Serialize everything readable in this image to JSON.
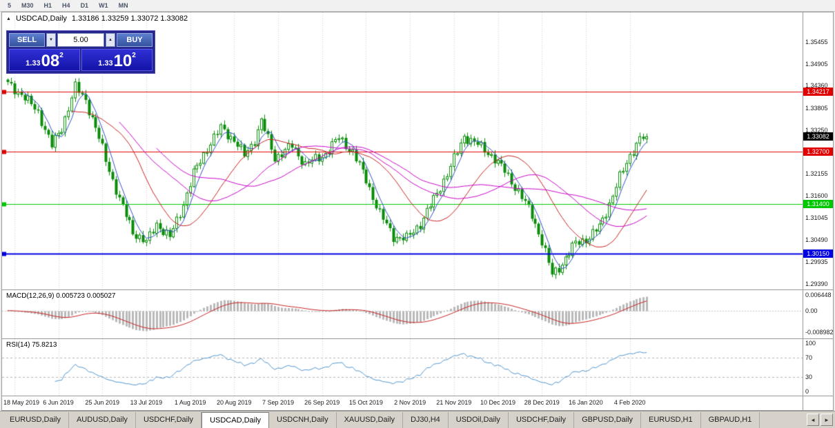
{
  "toolbar": {
    "periods": [
      "5",
      "M30",
      "H1",
      "H4",
      "D1",
      "W1",
      "MN"
    ]
  },
  "chart": {
    "title": "USDCAD,Daily",
    "ohlc": "1.33186 1.33259 1.33072 1.33082",
    "marker_icon": "▲"
  },
  "trade_panel": {
    "sell_label": "SELL",
    "buy_label": "BUY",
    "lot_value": "5.00",
    "decrease_icon": "▼",
    "increase_icon": "▲",
    "sell_price_prefix": "1.33",
    "sell_price_big": "08",
    "sell_price_sup": "2",
    "buy_price_prefix": "1.33",
    "buy_price_big": "10",
    "buy_price_sup": "2"
  },
  "tabs": {
    "items": [
      "EURUSD,Daily",
      "AUDUSD,Daily",
      "USDCHF,Daily",
      "USDCAD,Daily",
      "USDCNH,Daily",
      "XAUUSD,Daily",
      "DJ30,H4",
      "USDOil,Daily",
      "USDCHF,Daily",
      "GBPUSD,Daily",
      "EURUSD,H1",
      "GBPAUD,H1"
    ],
    "active_index": 3,
    "nav_left_icon": "◄",
    "nav_right_icon": "►"
  },
  "chart_data": {
    "type": "candlestick",
    "symbol": "USDCAD",
    "period": "Daily",
    "open": 1.33186,
    "high": 1.33259,
    "low": 1.33072,
    "close": 1.33082,
    "num_candles": 190,
    "price_path_anchors": [
      [
        0,
        1.344
      ],
      [
        4,
        1.3415
      ],
      [
        9,
        1.337
      ],
      [
        13,
        1.3285
      ],
      [
        16,
        1.333
      ],
      [
        20,
        1.3432
      ],
      [
        23,
        1.34
      ],
      [
        26,
        1.333
      ],
      [
        29,
        1.325
      ],
      [
        33,
        1.315
      ],
      [
        37,
        1.307
      ],
      [
        41,
        1.3042
      ],
      [
        44,
        1.309
      ],
      [
        48,
        1.3055
      ],
      [
        52,
        1.314
      ],
      [
        55,
        1.3215
      ],
      [
        59,
        1.328
      ],
      [
        63,
        1.333
      ],
      [
        67,
        1.33
      ],
      [
        70,
        1.326
      ],
      [
        73,
        1.33
      ],
      [
        75,
        1.3348
      ],
      [
        79,
        1.3255
      ],
      [
        84,
        1.3285
      ],
      [
        88,
        1.324
      ],
      [
        93,
        1.3258
      ],
      [
        98,
        1.3305
      ],
      [
        102,
        1.327
      ],
      [
        106,
        1.32
      ],
      [
        110,
        1.3115
      ],
      [
        114,
        1.3058
      ],
      [
        118,
        1.3052
      ],
      [
        122,
        1.309
      ],
      [
        126,
        1.315
      ],
      [
        130,
        1.3215
      ],
      [
        133,
        1.327
      ],
      [
        135,
        1.331
      ],
      [
        139,
        1.3288
      ],
      [
        143,
        1.3262
      ],
      [
        147,
        1.3222
      ],
      [
        151,
        1.317
      ],
      [
        155,
        1.3112
      ],
      [
        158,
        1.3045
      ],
      [
        161,
        1.2962
      ],
      [
        164,
        1.299
      ],
      [
        168,
        1.3042
      ],
      [
        172,
        1.3055
      ],
      [
        175,
        1.3082
      ],
      [
        178,
        1.314
      ],
      [
        181,
        1.3205
      ],
      [
        184,
        1.3262
      ],
      [
        187,
        1.3302
      ],
      [
        189,
        1.3308
      ]
    ],
    "synthesis": {
      "noise": [
        [
          0.0009,
          2.3,
          0.0
        ],
        [
          0.0006,
          0.9,
          2.0
        ]
      ],
      "wick": [
        0.0008,
        1.3,
        0.7,
        2.1
      ]
    },
    "candle_colors": {
      "up": "#0b8c0b",
      "down": "#0b8c0b"
    },
    "moving_averages": [
      {
        "period": 5,
        "color": "#3050c8"
      },
      {
        "period": 20,
        "color": "#c82020"
      },
      {
        "period": 34,
        "color": "#c800c8"
      },
      {
        "period": 45,
        "color": "#c800c8"
      }
    ],
    "y_axis": {
      "min": 1.2925,
      "max": 1.362,
      "ticks": [
        {
          "v": 1.35455,
          "label": "1.35455"
        },
        {
          "v": 1.34905,
          "label": "1.34905"
        },
        {
          "v": 1.3436,
          "label": "1.34360"
        },
        {
          "v": 1.33805,
          "label": "1.33805"
        },
        {
          "v": 1.3325,
          "label": "1.33250"
        },
        {
          "v": 1.327,
          "label": "1.32700"
        },
        {
          "v": 1.32155,
          "label": "1.32155"
        },
        {
          "v": 1.316,
          "label": "1.31600"
        },
        {
          "v": 1.31045,
          "label": "1.31045"
        },
        {
          "v": 1.3049,
          "label": "1.30490"
        },
        {
          "v": 1.29935,
          "label": "1.29935"
        },
        {
          "v": 1.2939,
          "label": "1.29390"
        }
      ]
    },
    "x_ticks": [
      {
        "i": 2,
        "label": "18 May 2019"
      },
      {
        "i": 15,
        "label": "6 Jun 2019"
      },
      {
        "i": 28,
        "label": "25 Jun 2019"
      },
      {
        "i": 41,
        "label": "13 Jul 2019"
      },
      {
        "i": 54,
        "label": "1 Aug 2019"
      },
      {
        "i": 67,
        "label": "20 Aug 2019"
      },
      {
        "i": 80,
        "label": "7 Sep 2019"
      },
      {
        "i": 93,
        "label": "26 Sep 2019"
      },
      {
        "i": 106,
        "label": "15 Oct 2019"
      },
      {
        "i": 119,
        "label": "2 Nov 2019"
      },
      {
        "i": 132,
        "label": "21 Nov 2019"
      },
      {
        "i": 145,
        "label": "10 Dec 2019"
      },
      {
        "i": 158,
        "label": "28 Dec 2019"
      },
      {
        "i": 171,
        "label": "16 Jan 2020"
      },
      {
        "i": 184,
        "label": "4 Feb 2020"
      }
    ],
    "h_lines": [
      {
        "price": 1.34217,
        "color": "#e00000",
        "label": "1.34217",
        "width": 1
      },
      {
        "price": 1.327,
        "color": "#e00000",
        "label": "1.32700",
        "width": 1
      },
      {
        "price": 1.314,
        "color": "#00c800",
        "label": "1.31400",
        "width": 1
      },
      {
        "price": 1.3015,
        "color": "#0000e0",
        "label": "1.30150",
        "width": 2
      }
    ],
    "current_price": {
      "value": 1.33082,
      "label": "1.33082",
      "bg": "#000000"
    },
    "indicators": [
      {
        "name": "MACD",
        "label": "MACD(12,26,9) 0.005723 0.005027",
        "fast": 12,
        "slow": 26,
        "signal": 9,
        "value": 0.005723,
        "signal_value": 0.005027,
        "range": [
          -0.0115,
          0.0085
        ],
        "histogram_color": "#b9b9b9",
        "signal_color": "#c82020",
        "ticks": [
          {
            "v": 0.006448,
            "label": "0.006448"
          },
          {
            "v": 0,
            "label": "0.00"
          },
          {
            "v": -0.008982,
            "label": "-0.008982"
          }
        ]
      },
      {
        "name": "RSI",
        "label": "RSI(14) 75.8213",
        "period": 14,
        "value": 75.8213,
        "line_color": "#4f94cd",
        "levels": [
          70,
          30
        ],
        "range": [
          0,
          100
        ],
        "ticks": [
          {
            "v": 100,
            "label": "100"
          },
          {
            "v": 70,
            "label": "70"
          },
          {
            "v": 30,
            "label": "30"
          },
          {
            "v": 0,
            "label": "0"
          }
        ]
      }
    ]
  }
}
